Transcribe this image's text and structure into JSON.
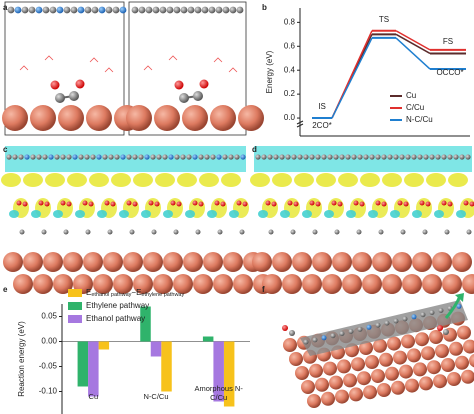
{
  "figure": {
    "panel_labels": [
      "a",
      "b",
      "c",
      "d",
      "e",
      "f"
    ]
  },
  "chart_data": [
    {
      "type": "energy-diagram",
      "ylabel": "Energy (eV)",
      "categories": [
        "IS",
        "TS",
        "FS"
      ],
      "annotations": [
        "2CO*",
        "OCCO*"
      ],
      "series": [
        {
          "name": "Cu",
          "color": "#5b2b2b",
          "values": [
            0,
            0.7,
            0.54
          ]
        },
        {
          "name": "C/Cu",
          "color": "#e0302e",
          "values": [
            0,
            0.73,
            0.57
          ]
        },
        {
          "name": "N-C/Cu",
          "color": "#1f7fd0",
          "values": [
            0,
            0.67,
            0.41
          ]
        }
      ],
      "ylim": [
        -0.15,
        0.92
      ],
      "yticks": [
        {
          "value": 0,
          "label": "0.0"
        },
        0.2,
        0.4,
        0.6,
        0.8
      ]
    },
    {
      "type": "bar",
      "ylabel": "Reaction energy (eV)",
      "categories": [
        "Cu",
        "N-C/Cu",
        "Amorphous N-C/Cu"
      ],
      "series": [
        {
          "name_parts": [
            "E",
            "ethanol pathway",
            "−E",
            "ethylene pathway"
          ],
          "color": "#f7c21b",
          "values": [
            -0.016,
            -0.1,
            -0.13
          ]
        },
        {
          "name": "Ethylene pathway",
          "color": "#2fb36b",
          "values": [
            -0.09,
            0.07,
            0.01
          ]
        },
        {
          "name": "Ethanol pathway",
          "color": "#a678e0",
          "values": [
            -0.11,
            -0.03,
            -0.12
          ]
        }
      ],
      "ylim": [
        -0.145,
        0.075
      ],
      "yticks": [
        0.05,
        {
          "value": 0,
          "label": "0.00"
        },
        {
          "value": -0.05,
          "label": "-0.05"
        },
        {
          "value": -0.1,
          "label": "-0.10"
        }
      ]
    }
  ]
}
